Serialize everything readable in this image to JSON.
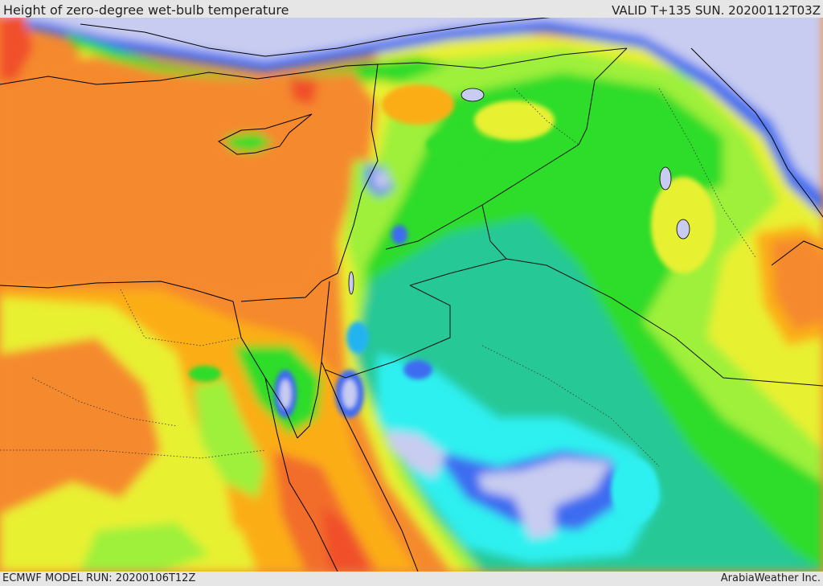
{
  "header": {
    "title": "Height of zero-degree wet-bulb temperature",
    "valid_time": "VALID T+135 SUN. 20200112T03Z"
  },
  "footer": {
    "model_run": "ECMWF MODEL RUN: 20200106T12Z",
    "credit": "ArabiaWeather Inc."
  },
  "map": {
    "colors": {
      "red": "#f0502a",
      "orange_red": "#f26d2a",
      "orange": "#f5892e",
      "amber": "#fbad16",
      "yellow": "#e8f032",
      "yellow_green": "#9ef03a",
      "green": "#2edc2a",
      "teal": "#28c896",
      "cyan": "#2ef0f0",
      "sky": "#22b4f0",
      "blue": "#3c6cf0",
      "lavender": "#c8ccf0"
    },
    "icons": [
      "country-borders",
      "coastlines",
      "lakes"
    ]
  }
}
